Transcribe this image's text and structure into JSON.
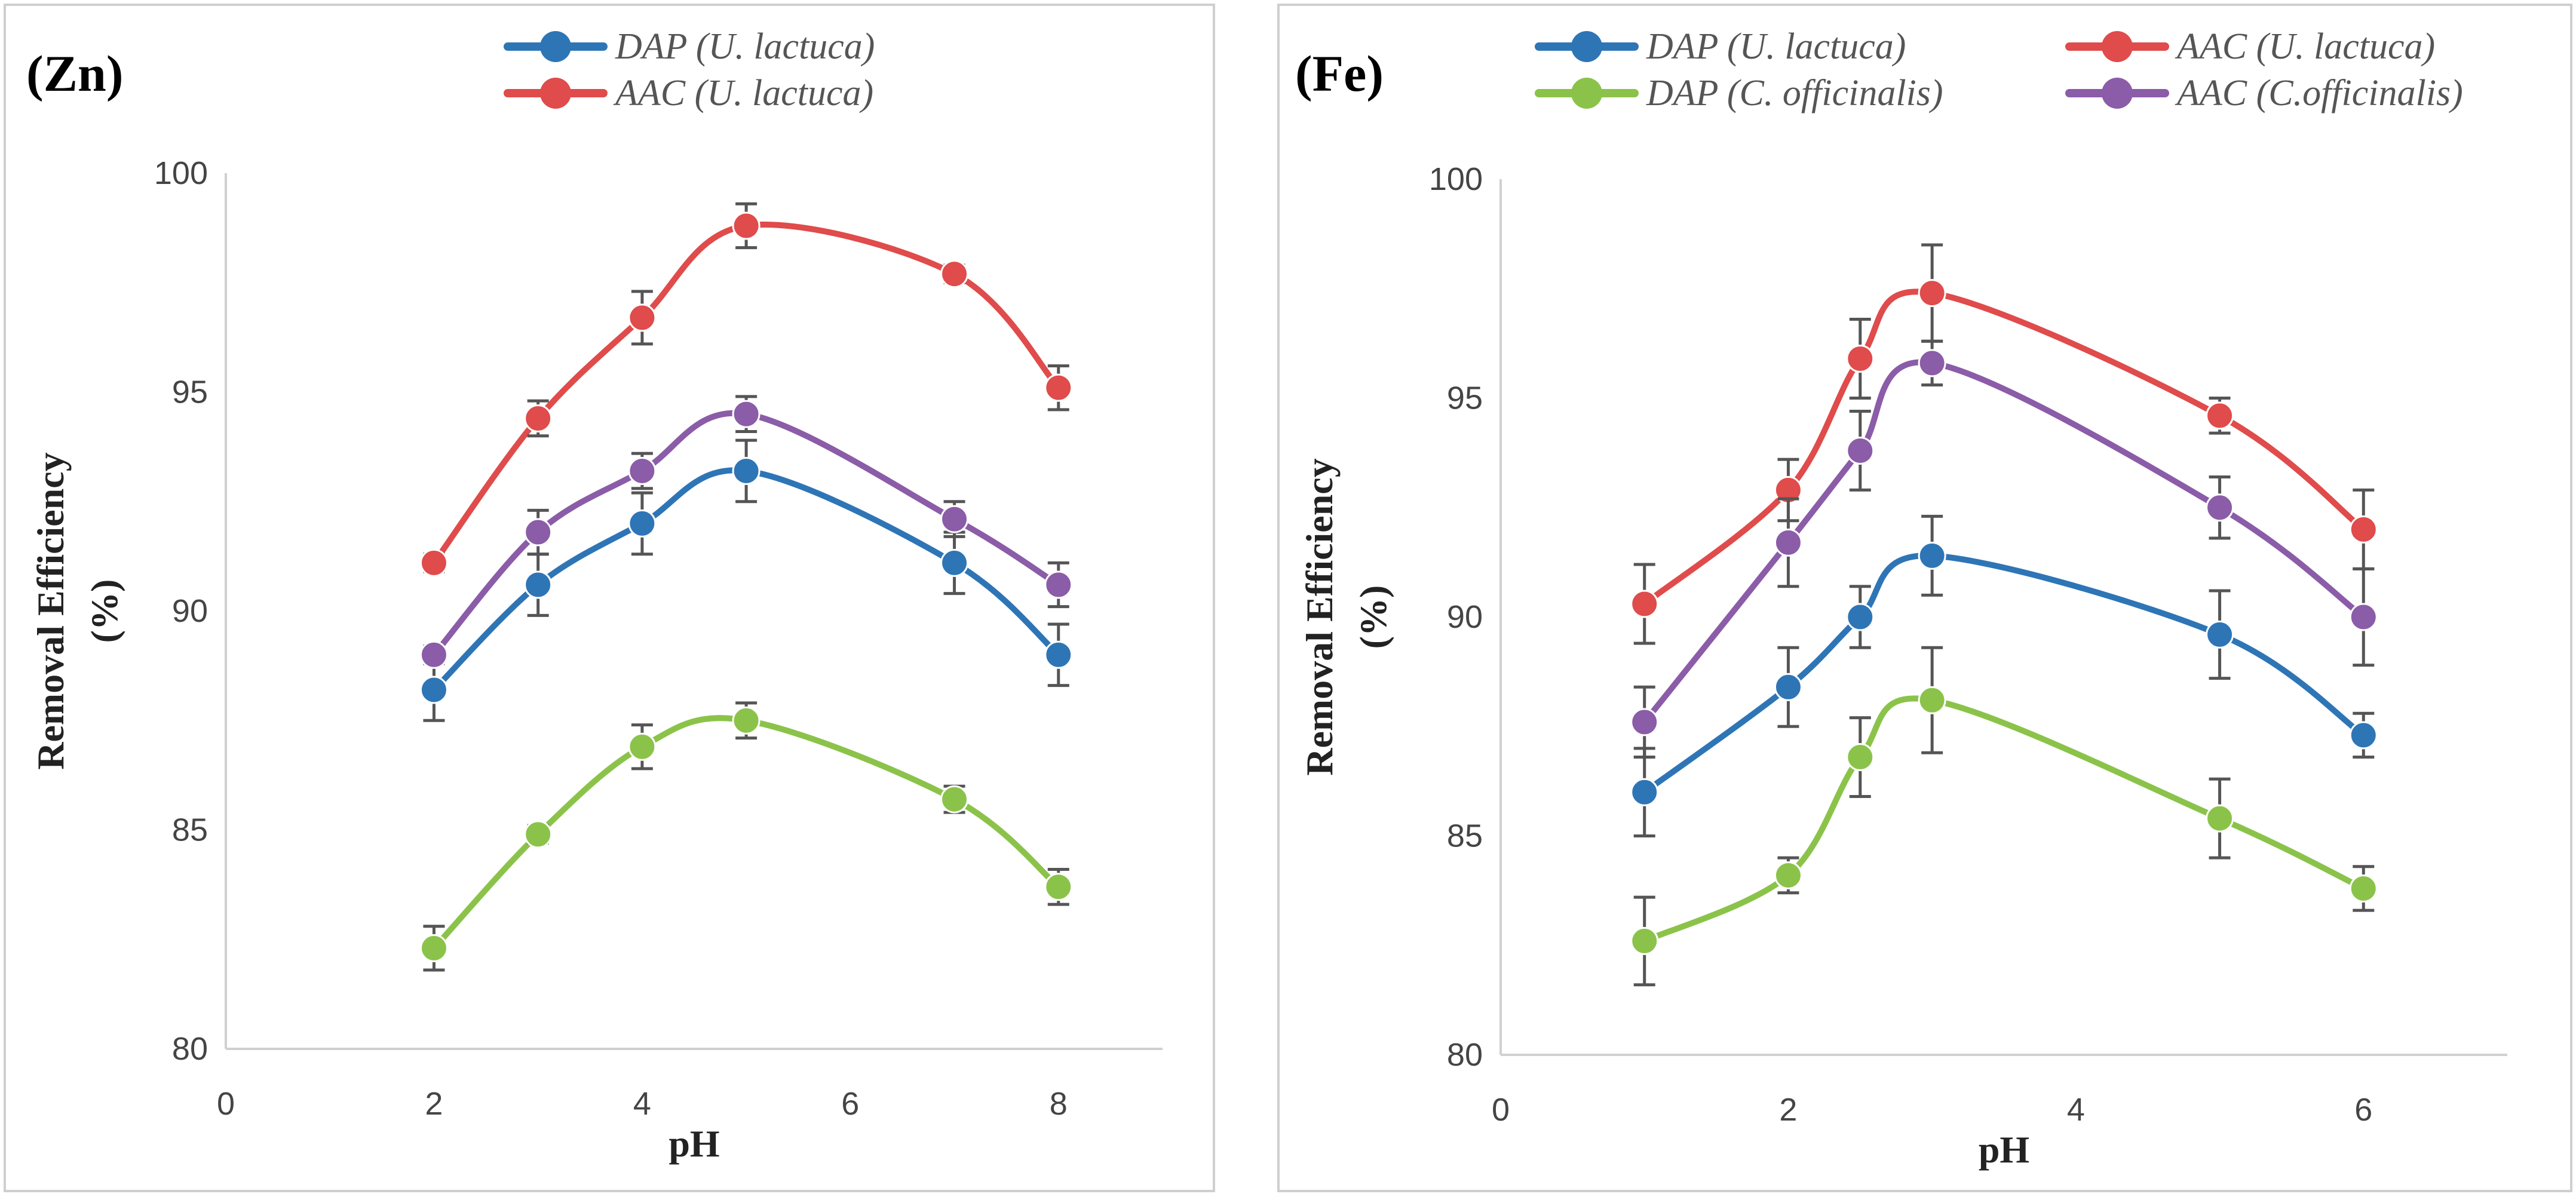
{
  "chart_data": [
    {
      "type": "line",
      "panel_label": "(Zn)",
      "xlabel": "pH",
      "ylabel_line1": "Removal  Efficiency",
      "ylabel_line2": "(%)",
      "xlim": [
        0,
        9
      ],
      "ylim": [
        80,
        100
      ],
      "x_ticks": [
        0,
        2,
        4,
        6,
        8
      ],
      "y_ticks": [
        80,
        85,
        90,
        95,
        100
      ],
      "x_tick_labels": [
        "0",
        "2",
        "4",
        "6",
        "8"
      ],
      "y_tick_labels": [
        "80",
        "85",
        "90",
        "95",
        "100"
      ],
      "x": [
        2,
        3,
        4,
        5,
        7,
        8
      ],
      "legend": [
        "DAP (U. lactuca)",
        "AAC (U. lactuca)"
      ],
      "series": [
        {
          "name": "DAP (U. lactuca)",
          "color": "#2E75B6",
          "values": [
            88.2,
            90.6,
            92.0,
            93.2,
            91.1,
            89.0
          ],
          "errors": [
            0.7,
            0.7,
            0.7,
            0.7,
            0.7,
            0.7
          ]
        },
        {
          "name": "AAC (U. lactuca)",
          "color": "#E04B4B",
          "values": [
            91.1,
            94.4,
            96.7,
            98.8,
            97.7,
            95.1
          ],
          "errors": [
            0.2,
            0.4,
            0.6,
            0.5,
            0.2,
            0.5
          ]
        },
        {
          "name": "DAP (C. officinalis)",
          "color": "#8BC34A",
          "values": [
            82.3,
            84.9,
            86.9,
            87.5,
            85.7,
            83.7
          ],
          "errors": [
            0.5,
            0.2,
            0.5,
            0.4,
            0.3,
            0.4
          ]
        },
        {
          "name": "AAC (C. officinalis)",
          "color": "#8B5CA8",
          "values": [
            89.0,
            91.8,
            93.2,
            94.5,
            92.1,
            90.6
          ],
          "errors": [
            0.2,
            0.5,
            0.4,
            0.4,
            0.4,
            0.5
          ]
        }
      ]
    },
    {
      "type": "line",
      "panel_label": "(Fe)",
      "xlabel": "pH",
      "ylabel_line1": "Removal  Efficiency",
      "ylabel_line2": "(%)",
      "xlim": [
        0,
        7
      ],
      "ylim": [
        80,
        100
      ],
      "x_ticks": [
        0,
        2,
        4,
        6
      ],
      "y_ticks": [
        80,
        85,
        90,
        95,
        100
      ],
      "x_tick_labels": [
        "0",
        "2",
        "4",
        "6"
      ],
      "y_tick_labels": [
        "80",
        "85",
        "90",
        "95",
        "100"
      ],
      "x": [
        1,
        2,
        2.5,
        3,
        5,
        6
      ],
      "legend": [
        "DAP (U. lactuca)",
        "AAC (U. lactuca)",
        "DAP (C. officinalis)",
        "AAC (C.officinalis)"
      ],
      "series": [
        {
          "name": "DAP (U. lactuca)",
          "color": "#2E75B6",
          "values": [
            86.0,
            88.4,
            90.0,
            91.4,
            89.6,
            87.3
          ],
          "errors": [
            1.0,
            0.9,
            0.7,
            0.9,
            1.0,
            0.5
          ]
        },
        {
          "name": "AAC (U. lactuca)",
          "color": "#E04B4B",
          "values": [
            90.3,
            92.9,
            95.9,
            97.4,
            94.6,
            92.0
          ],
          "errors": [
            0.9,
            0.7,
            0.9,
            1.1,
            0.4,
            0.9
          ]
        },
        {
          "name": "DAP (C. officinalis)",
          "color": "#8BC34A",
          "values": [
            82.6,
            84.1,
            86.8,
            88.1,
            85.4,
            83.8
          ],
          "errors": [
            1.0,
            0.4,
            0.9,
            1.2,
            0.9,
            0.5
          ]
        },
        {
          "name": "AAC (C.officinalis)",
          "color": "#8B5CA8",
          "values": [
            87.6,
            91.7,
            93.8,
            95.8,
            92.5,
            90.0
          ],
          "errors": [
            0.8,
            1.0,
            0.9,
            0.5,
            0.7,
            1.1
          ]
        }
      ]
    }
  ]
}
